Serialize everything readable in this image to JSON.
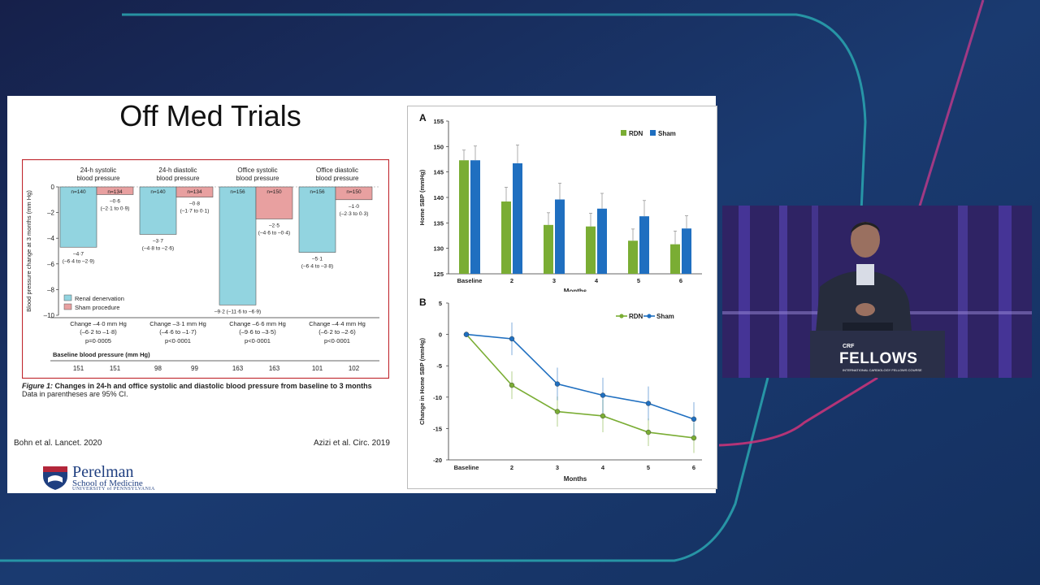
{
  "slide": {
    "title": "Off Med Trials",
    "citation_left": "Bohn et al. Lancet. 2020",
    "citation_right": "Azizi et al. Circ. 2019",
    "logo": {
      "name": "Perelman",
      "sub": "School of Medicine",
      "univ": "UNIVERSITY of PENNSYLVANIA"
    }
  },
  "figure1": {
    "caption_bold": "Figure 1:",
    "caption_text": " Changes in 24-h and office systolic and diastolic blood pressure from baseline to 3 months",
    "caption_note": "Data in parentheses are 95% CI."
  },
  "video": {
    "crf": "CRF",
    "brand": "FELLOWS",
    "sub": "INTERNATIONAL CARDIOLOGY FELLOWS COURSE"
  },
  "colors": {
    "rdn_bar": "#92d4e0",
    "sham_bar": "#e8a0a0",
    "rdn_green": "#7aad34",
    "sham_blue": "#1f6fc0",
    "frame_red": "#c0282f"
  },
  "chart_data": [
    {
      "type": "bar",
      "ylabel": "Blood pressure change at 3 months (mm Hg)",
      "ylim": [
        -10,
        0
      ],
      "yticks": [
        0,
        -2,
        -4,
        -6,
        -8,
        -10
      ],
      "legend": [
        "Renal denervation",
        "Sham procedure"
      ],
      "groups": [
        {
          "label1": "24-h systolic",
          "label2": "blood pressure",
          "rdn": {
            "value": -4.7,
            "n": "n=140",
            "v": "–4·7",
            "ci": "(–6·4 to –2·9)"
          },
          "sham": {
            "value": -0.6,
            "n": "n=134",
            "v": "–0·6",
            "ci": "(–2·1 to 0·9)"
          },
          "change": "Change –4·0 mm Hg",
          "change_ci": "(–6·2 to –1·8)",
          "p": "p=0·0005",
          "base_rdn": "151",
          "base_sham": "151"
        },
        {
          "label1": "24-h diastolic",
          "label2": "blood pressure",
          "rdn": {
            "value": -3.7,
            "n": "n=140",
            "v": "–3·7",
            "ci": "(–4·8 to –2·6)"
          },
          "sham": {
            "value": -0.8,
            "n": "n=134",
            "v": "–0·8",
            "ci": "(–1·7 to 0·1)"
          },
          "change": "Change –3·1 mm Hg",
          "change_ci": "(–4·6 to –1·7)",
          "p": "p<0·0001",
          "base_rdn": "98",
          "base_sham": "99"
        },
        {
          "label1": "Office systolic",
          "label2": "blood pressure",
          "rdn": {
            "value": -9.2,
            "n": "n=156",
            "v": "–9·2 (–11·6 to –6·9)",
            "ci": ""
          },
          "sham": {
            "value": -2.5,
            "n": "n=150",
            "v": "–2·5",
            "ci": "(–4·6 to –0·4)"
          },
          "change": "Change –6·6 mm Hg",
          "change_ci": "(–9·6 to –3·5)",
          "p": "p<0·0001",
          "base_rdn": "163",
          "base_sham": "163"
        },
        {
          "label1": "Office diastolic",
          "label2": "blood pressure",
          "rdn": {
            "value": -5.1,
            "n": "n=156",
            "v": "–5·1",
            "ci": "(–6·4 to –3·8)"
          },
          "sham": {
            "value": -1.0,
            "n": "n=150",
            "v": "–1·0",
            "ci": "(–2·3 to 0·3)"
          },
          "change": "Change –4·4 mm Hg",
          "change_ci": "(–6·2 to –2·6)",
          "p": "p<0·0001",
          "base_rdn": "101",
          "base_sham": "102"
        }
      ],
      "baseline_label": "Baseline blood pressure (mm Hg)"
    },
    {
      "type": "bar",
      "panel": "A",
      "xlabel": "Months",
      "ylabel": "Home SBP (mmHg)",
      "ylim": [
        125,
        155
      ],
      "yticks": [
        125,
        130,
        135,
        140,
        145,
        150,
        155
      ],
      "categories": [
        "Baseline",
        "2",
        "3",
        "4",
        "5",
        "6"
      ],
      "series": [
        {
          "name": "RDN",
          "values": [
            147.3,
            139.2,
            134.6,
            134.3,
            131.5,
            130.8
          ],
          "errors": [
            2.0,
            2.8,
            2.4,
            2.6,
            2.3,
            2.6
          ]
        },
        {
          "name": "Sham",
          "values": [
            147.3,
            146.7,
            139.6,
            137.8,
            136.3,
            133.9
          ],
          "errors": [
            2.8,
            3.6,
            3.2,
            3.0,
            3.1,
            2.5
          ]
        }
      ]
    },
    {
      "type": "line",
      "panel": "B",
      "xlabel": "Months",
      "ylabel": "Change in Home SBP (mmHg)",
      "ylim": [
        -20,
        5
      ],
      "yticks": [
        5,
        0,
        -5,
        -10,
        -15,
        -20
      ],
      "categories": [
        "Baseline",
        "2",
        "3",
        "4",
        "5",
        "6"
      ],
      "series": [
        {
          "name": "RDN",
          "values": [
            0,
            -8.1,
            -12.3,
            -13.0,
            -15.6,
            -16.5
          ],
          "errors": [
            0,
            2.2,
            2.4,
            2.6,
            2.2,
            2.4
          ]
        },
        {
          "name": "Sham",
          "values": [
            0,
            -0.7,
            -7.9,
            -9.7,
            -11.0,
            -13.5
          ],
          "errors": [
            0,
            2.6,
            2.6,
            2.8,
            2.7,
            2.7
          ]
        }
      ]
    }
  ]
}
